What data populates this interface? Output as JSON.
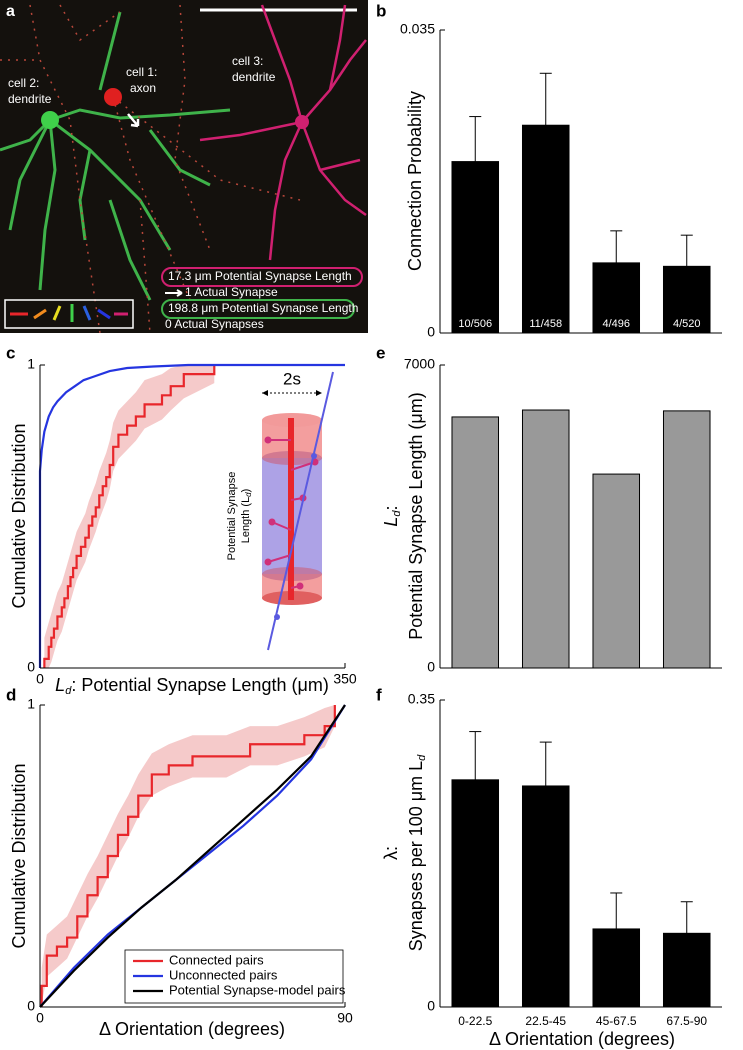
{
  "panel_a": {
    "panel_label": "a",
    "cell_labels": [
      [
        "cell 2:",
        "dendrite"
      ],
      [
        "cell 1:",
        "axon"
      ],
      [
        "cell 3:",
        "dendrite"
      ]
    ],
    "callouts": [
      "17.3 μm Potential Synapse Length",
      "1 Actual Synapse",
      "198.8 μm Potential Synapse Length",
      "0 Actual Synapses"
    ]
  },
  "chart_data": [
    {
      "type": "bar",
      "panel_label": "b",
      "ylabel": "Connection Probability",
      "values": [
        0.0198,
        0.024,
        0.0081,
        0.0077
      ],
      "errors": [
        0.0052,
        0.006,
        0.0037,
        0.0036
      ],
      "bar_labels": [
        "10/506",
        "11/458",
        "4/496",
        "4/520"
      ],
      "color": "#000000",
      "ylim": [
        0,
        0.035
      ],
      "yticks": [
        0,
        0.035
      ]
    },
    {
      "type": "line",
      "panel_label": "c",
      "ylabel": "Cumulative Distribution",
      "xlabel": {
        "symbol": "L",
        "subscript": "d",
        "text": ": Potential Synapse Length (μm)"
      },
      "inset": {
        "width_label": "2s",
        "length_line1": "Potential Synapse",
        "length_line2": "Length (L",
        "length_subscript": "d",
        "length_end": ")"
      },
      "xlim": [
        0,
        350
      ],
      "ylim": [
        0,
        1
      ],
      "xticks": [
        0,
        350
      ],
      "yticks": [
        0,
        1
      ],
      "series": [
        {
          "color": "#e8262b",
          "band_color": "#f2b8b8",
          "step": true,
          "x": [
            5,
            10,
            13,
            16,
            20,
            25,
            28,
            32,
            35,
            38,
            42,
            47,
            52,
            56,
            60,
            64,
            68,
            72,
            76,
            80,
            84,
            90,
            100,
            110,
            120,
            140,
            150,
            165,
            200
          ],
          "values": [
            0.03,
            0.07,
            0.1,
            0.13,
            0.17,
            0.2,
            0.23,
            0.27,
            0.3,
            0.33,
            0.37,
            0.4,
            0.43,
            0.47,
            0.5,
            0.53,
            0.57,
            0.6,
            0.63,
            0.67,
            0.73,
            0.77,
            0.8,
            0.83,
            0.87,
            0.9,
            0.93,
            0.97,
            1
          ],
          "upper": [
            0.1,
            0.15,
            0.18,
            0.21,
            0.25,
            0.28,
            0.31,
            0.35,
            0.38,
            0.41,
            0.45,
            0.48,
            0.51,
            0.55,
            0.58,
            0.61,
            0.65,
            0.68,
            0.71,
            0.75,
            0.81,
            0.85,
            0.88,
            0.91,
            0.95,
            0.97,
            0.99,
            1,
            1
          ],
          "lower": [
            0,
            0,
            0.02,
            0.05,
            0.09,
            0.12,
            0.15,
            0.19,
            0.22,
            0.25,
            0.29,
            0.32,
            0.35,
            0.39,
            0.42,
            0.45,
            0.49,
            0.52,
            0.55,
            0.59,
            0.65,
            0.69,
            0.72,
            0.75,
            0.79,
            0.82,
            0.85,
            0.89,
            0.94
          ]
        },
        {
          "color": "#2535e0",
          "step": false,
          "x": [
            0,
            0,
            2,
            5,
            10,
            15,
            20,
            30,
            40,
            50,
            60,
            80,
            100,
            130,
            170,
            350
          ],
          "values": [
            0,
            0.65,
            0.72,
            0.78,
            0.83,
            0.86,
            0.88,
            0.91,
            0.93,
            0.95,
            0.96,
            0.98,
            0.99,
            0.995,
            1,
            1
          ]
        }
      ]
    },
    {
      "type": "line",
      "panel_label": "d",
      "ylabel": "Cumulative Distribution",
      "xlabel": "Δ Orientation (degrees)",
      "xlim": [
        0,
        90
      ],
      "ylim": [
        0,
        1
      ],
      "xticks": [
        0,
        90
      ],
      "yticks": [
        0,
        1
      ],
      "legend": "lower right",
      "series": [
        {
          "name": "Connected pairs",
          "color": "#e8262b",
          "band_color": "#f2b8b8",
          "step": true,
          "x": [
            0.5,
            2,
            5,
            8,
            11,
            14,
            17,
            20,
            23,
            26,
            29,
            33,
            38,
            45,
            55,
            62,
            70,
            78,
            84,
            87
          ],
          "values": [
            0.07,
            0.17,
            0.2,
            0.23,
            0.3,
            0.37,
            0.43,
            0.5,
            0.57,
            0.63,
            0.7,
            0.77,
            0.8,
            0.83,
            0.83,
            0.87,
            0.87,
            0.9,
            0.93,
            1
          ],
          "upper": [
            0.13,
            0.24,
            0.27,
            0.3,
            0.37,
            0.44,
            0.5,
            0.57,
            0.64,
            0.7,
            0.77,
            0.84,
            0.87,
            0.9,
            0.9,
            0.93,
            0.93,
            0.96,
            0.99,
            1
          ],
          "lower": [
            0.01,
            0.1,
            0.13,
            0.16,
            0.23,
            0.3,
            0.36,
            0.43,
            0.5,
            0.56,
            0.63,
            0.7,
            0.73,
            0.76,
            0.76,
            0.8,
            0.8,
            0.83,
            0.86,
            0.93
          ]
        },
        {
          "name": "Unconnected pairs",
          "color": "#2535e0",
          "step": false,
          "x": [
            0,
            10,
            20,
            30,
            40,
            50,
            60,
            70,
            80,
            90
          ],
          "values": [
            0,
            0.13,
            0.24,
            0.33,
            0.42,
            0.51,
            0.6,
            0.7,
            0.82,
            1
          ]
        },
        {
          "name": "Potential Synapse-model pairs",
          "color": "#000000",
          "step": false,
          "x": [
            0,
            10,
            20,
            30,
            40,
            50,
            60,
            70,
            80,
            90
          ],
          "values": [
            0,
            0.12,
            0.23,
            0.33,
            0.42,
            0.52,
            0.62,
            0.72,
            0.83,
            1
          ]
        }
      ]
    },
    {
      "type": "bar",
      "panel_label": "e",
      "ylabel": {
        "symbol": "L",
        "subscript": "d",
        "symbol_end": ":",
        "text": "Potential Synapse Length (μm)"
      },
      "values": [
        5800,
        5960,
        4480,
        5940
      ],
      "color": "#999999",
      "ylim": [
        0,
        7000
      ],
      "yticks": [
        0,
        7000
      ]
    },
    {
      "type": "bar",
      "panel_label": "f",
      "ylabel": {
        "symbol": "λ:",
        "text": "Synapses per 100 μm L",
        "subscript": "d"
      },
      "xlabel": "Δ Orientation (degrees)",
      "categories": [
        "0-22.5",
        "22.5-45",
        "45-67.5",
        "67.5-90"
      ],
      "values": [
        0.259,
        0.252,
        0.089,
        0.084
      ],
      "errors": [
        0.055,
        0.05,
        0.041,
        0.036
      ],
      "color": "#000000",
      "ylim": [
        0,
        0.35
      ],
      "yticks": [
        0,
        0.35
      ]
    }
  ]
}
